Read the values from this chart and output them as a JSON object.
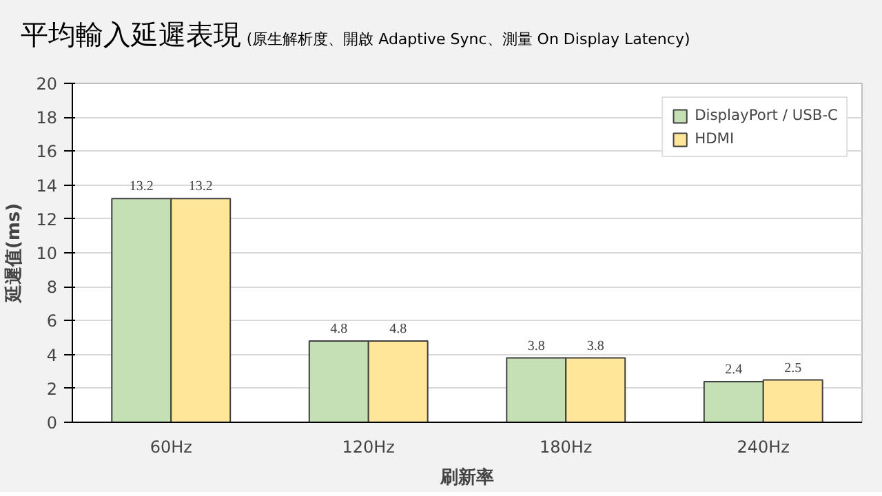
{
  "chart_data": {
    "type": "bar",
    "title": "平均輸入延遲表現",
    "subtitle": "(原生解析度、開啟 Adaptive Sync、測量 On Display Latency)",
    "xlabel": "刷新率",
    "ylabel": "延遲值(ms)",
    "categories": [
      "60Hz",
      "120Hz",
      "180Hz",
      "240Hz"
    ],
    "series": [
      {
        "name": "DisplayPort / USB-C",
        "color": "#c5e0b4",
        "values": [
          13.2,
          4.8,
          3.8,
          2.4
        ]
      },
      {
        "name": "HDMI",
        "color": "#ffe699",
        "values": [
          13.2,
          4.8,
          3.8,
          2.5
        ]
      }
    ],
    "ylim": [
      0,
      20
    ],
    "yticks": [
      0,
      2,
      4,
      6,
      8,
      10,
      12,
      14,
      16,
      18,
      20
    ],
    "grid": "y",
    "legend": "top right",
    "data_labels": true
  }
}
